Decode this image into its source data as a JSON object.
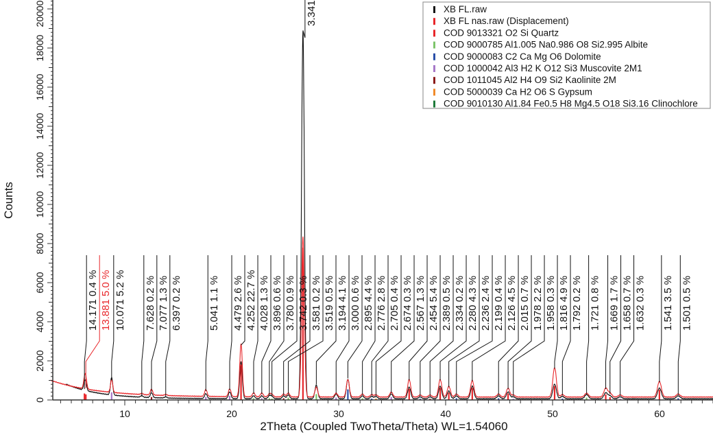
{
  "chart_data": {
    "type": "line",
    "xlabel": "2Theta (Coupled TwoTheta/Theta) WL=1.54060",
    "ylabel": "Counts",
    "xlim": [
      3.1,
      65.9
    ],
    "ylim": [
      0,
      20500
    ],
    "x_ticks": [
      "10",
      "20",
      "30",
      "40",
      "50",
      "60"
    ],
    "y_ticks": [
      "0",
      "2000",
      "4000",
      "6000",
      "8000",
      "10000",
      "12000",
      "14000",
      "16000",
      "18000",
      "20000"
    ],
    "legend_position": "top-right",
    "legend": [
      {
        "name": "XB FL.raw",
        "color": "#111111"
      },
      {
        "name": "XB FL nas.raw (Displacement)",
        "color": "#e8262a"
      },
      {
        "name": "COD 9013321 O2 Si Quartz",
        "color": "#e8262a"
      },
      {
        "name": "COD 9000785 Al1.005 Na0.986 O8 Si2.995 Albite",
        "color": "#7dc46a"
      },
      {
        "name": "COD 9000083 C2 Ca Mg O6 Dolomite",
        "color": "#2a4fa8"
      },
      {
        "name": "COD 1000042 Al3 H2 K O12 Si3 Muscovite 2M1",
        "color": "#a678c8"
      },
      {
        "name": "COD 1011045 Al2 H4 O9 Si2 Kaolinite 2M",
        "color": "#8b1a1a"
      },
      {
        "name": "COD 5000039 Ca H2 O6 S Gypsum",
        "color": "#f08a2a"
      },
      {
        "name": "COD 9010130 Al1.84 Fe0.5 H8 Mg4.5 O18 Si3.16 Clinochlore",
        "color": "#1e7a3a"
      }
    ],
    "peaks": [
      {
        "label": "14.171  0.4 %",
        "two_theta": 6.23,
        "counts_raw": 350,
        "counts_nas": 450,
        "label_color": "#111111"
      },
      {
        "label": "13.881  5.0 %",
        "two_theta": 6.36,
        "counts_raw": 300,
        "counts_nas": 500,
        "label_color": "#e8262a"
      },
      {
        "label": "10.071  5.2 %",
        "two_theta": 8.77,
        "counts_raw": 900,
        "counts_nas": 650,
        "label_color": "#111111",
        "phase": 5
      },
      {
        "label": "7.628  0.2 %",
        "two_theta": 11.59,
        "counts_raw": 80,
        "counts_nas": 60,
        "label_color": "#111111",
        "phase": 7
      },
      {
        "label": "7.077  1.3 %",
        "two_theta": 12.5,
        "counts_raw": 250,
        "counts_nas": 300,
        "label_color": "#111111",
        "phase": 6
      },
      {
        "label": "6.397  0.2 %",
        "two_theta": 13.83,
        "counts_raw": 60,
        "counts_nas": 60,
        "label_color": "#111111",
        "phase": 3
      },
      {
        "label": "5.041  1.1 %",
        "two_theta": 17.58,
        "counts_raw": 250,
        "counts_nas": 350,
        "label_color": "#111111",
        "phase": 5
      },
      {
        "label": "4.479  2.6 %",
        "two_theta": 19.81,
        "counts_raw": 350,
        "counts_nas": 400,
        "label_color": "#111111",
        "phase": 5
      },
      {
        "label": "4.252  22.7 %",
        "two_theta": 20.87,
        "counts_raw": 1900,
        "counts_nas": 2700,
        "label_color": "#111111",
        "phase": 2
      },
      {
        "label": "4.028  1.3 %",
        "two_theta": 22.05,
        "counts_raw": 150,
        "counts_nas": 200,
        "label_color": "#111111",
        "phase": 3
      },
      {
        "label": "3.896  0.6 %",
        "two_theta": 22.81,
        "counts_raw": 150,
        "counts_nas": 200,
        "label_color": "#111111",
        "phase": 5
      },
      {
        "label": "3.780  0.9 %",
        "two_theta": 23.52,
        "counts_raw": 150,
        "counts_nas": 150,
        "label_color": "#111111",
        "phase": 3
      },
      {
        "label": "3.742  0.3 %",
        "two_theta": 23.76,
        "counts_raw": 120,
        "counts_nas": 120,
        "label_color": "#111111",
        "phase": 3
      },
      {
        "label": "3.581  0.2 %",
        "two_theta": 24.85,
        "counts_raw": 150,
        "counts_nas": 150,
        "label_color": "#111111",
        "phase": 6
      },
      {
        "label": "3.519  0.5 %",
        "two_theta": 25.29,
        "counts_raw": 200,
        "counts_nas": 200,
        "label_color": "#111111",
        "phase": 3
      },
      {
        "label": "3.341",
        "two_theta": 26.66,
        "counts_raw": 18800,
        "counts_nas": 8200,
        "label_color": "#111111",
        "phase": 2
      },
      {
        "label": "3.194  4.1 %",
        "two_theta": 27.91,
        "counts_raw": 700,
        "counts_nas": 500,
        "label_color": "#111111",
        "phase": 3
      },
      {
        "label": "3.000  0.6 %",
        "two_theta": 29.76,
        "counts_raw": 250,
        "counts_nas": 200,
        "label_color": "#111111",
        "phase": 5
      },
      {
        "label": "2.895  4.4 %",
        "two_theta": 30.86,
        "counts_raw": 1000,
        "counts_nas": 900,
        "label_color": "#111111",
        "phase": 4
      },
      {
        "label": "2.776  2.8 %",
        "two_theta": 32.22,
        "counts_raw": 150,
        "counts_nas": 150,
        "label_color": "#111111",
        "phase": 3
      },
      {
        "label": "2.705  0.4 %",
        "two_theta": 33.09,
        "counts_raw": 120,
        "counts_nas": 120,
        "label_color": "#111111",
        "phase": 4
      },
      {
        "label": "2.674  0.3 %",
        "two_theta": 33.49,
        "counts_raw": 120,
        "counts_nas": 120,
        "label_color": "#111111",
        "phase": 7
      },
      {
        "label": "2.567  1.3 %",
        "two_theta": 34.92,
        "counts_raw": 250,
        "counts_nas": 250,
        "label_color": "#111111",
        "phase": 5
      },
      {
        "label": "2.454  5.4 %",
        "two_theta": 36.59,
        "counts_raw": 600,
        "counts_nas": 900,
        "label_color": "#111111",
        "phase": 2
      },
      {
        "label": "2.389  0.5 %",
        "two_theta": 37.62,
        "counts_raw": 100,
        "counts_nas": 100,
        "label_color": "#111111",
        "phase": 4
      },
      {
        "label": "2.334  0.2 %",
        "two_theta": 38.54,
        "counts_raw": 100,
        "counts_nas": 100,
        "label_color": "#111111",
        "phase": 6
      },
      {
        "label": "2.280  4.3 %",
        "two_theta": 39.49,
        "counts_raw": 650,
        "counts_nas": 900,
        "label_color": "#111111",
        "phase": 2
      },
      {
        "label": "2.236  2.4 %",
        "two_theta": 40.3,
        "counts_raw": 400,
        "counts_nas": 550,
        "label_color": "#111111",
        "phase": 2
      },
      {
        "label": "2.199  0.4 %",
        "two_theta": 41.01,
        "counts_raw": 150,
        "counts_nas": 150,
        "label_color": "#111111",
        "phase": 4
      },
      {
        "label": "2.126  4.5 %",
        "two_theta": 42.49,
        "counts_raw": 650,
        "counts_nas": 850,
        "label_color": "#111111",
        "phase": 2
      },
      {
        "label": "2.015  0.7 %",
        "two_theta": 44.95,
        "counts_raw": 150,
        "counts_nas": 150,
        "label_color": "#111111",
        "phase": 4
      },
      {
        "label": "1.978  2.2 %",
        "two_theta": 45.84,
        "counts_raw": 350,
        "counts_nas": 450,
        "label_color": "#111111",
        "phase": 2
      },
      {
        "label": "1.958  0.3 %",
        "two_theta": 46.33,
        "counts_raw": 100,
        "counts_nas": 100,
        "label_color": "#111111",
        "phase": 5
      },
      {
        "label": "1.816  4.9 %",
        "two_theta": 50.19,
        "counts_raw": 750,
        "counts_nas": 1500,
        "label_color": "#111111",
        "phase": 2
      },
      {
        "label": "1.792  0.2 %",
        "two_theta": 50.92,
        "counts_raw": 120,
        "counts_nas": 120,
        "label_color": "#111111",
        "phase": 4
      },
      {
        "label": "1.721  0.8 %",
        "two_theta": 53.18,
        "counts_raw": 220,
        "counts_nas": 200,
        "label_color": "#111111",
        "phase": 3
      },
      {
        "label": "1.669  1.7 %",
        "two_theta": 54.97,
        "counts_raw": 300,
        "counts_nas": 450,
        "label_color": "#111111",
        "phase": 2
      },
      {
        "label": "1.658  0.7 %",
        "two_theta": 55.37,
        "counts_raw": 150,
        "counts_nas": 200,
        "label_color": "#111111",
        "phase": 2
      },
      {
        "label": "1.632  0.3 %",
        "two_theta": 56.32,
        "counts_raw": 100,
        "counts_nas": 100,
        "label_color": "#111111",
        "phase": 5
      },
      {
        "label": "1.541  3.5 %",
        "two_theta": 59.99,
        "counts_raw": 550,
        "counts_nas": 800,
        "label_color": "#111111",
        "phase": 2
      },
      {
        "label": "1.501  0.5 %",
        "two_theta": 61.75,
        "counts_raw": 150,
        "counts_nas": 150,
        "label_color": "#111111",
        "phase": 4
      }
    ]
  }
}
